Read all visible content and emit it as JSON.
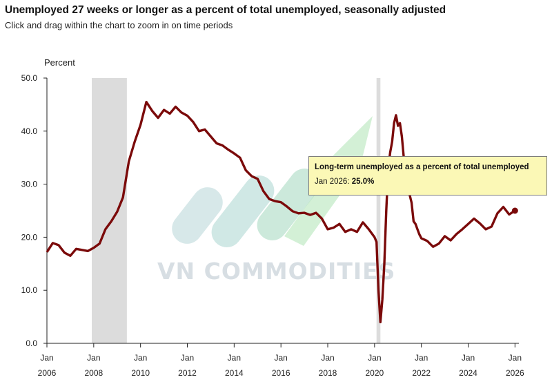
{
  "header": {
    "title": "Unemployed 27 weeks or longer as a percent of total unemployed, seasonally adjusted",
    "subtitle": "Click and drag within the chart to zoom in on time periods"
  },
  "watermark": {
    "text": "VN COMMODITIES"
  },
  "tooltip": {
    "title": "Long-term unemployed as a percent of total unemployed",
    "label": "Jan 2026:",
    "value": "25.0%"
  },
  "chart_data": {
    "type": "line",
    "ylabel": "Percent",
    "ylim": [
      0,
      50
    ],
    "xlim": [
      "2006-01",
      "2026-03"
    ],
    "yticks": [
      "0.0",
      "10.0",
      "20.0",
      "30.0",
      "40.0",
      "50.0"
    ],
    "xticks": [
      {
        "month": "Jan",
        "year": "2006"
      },
      {
        "month": "Jan",
        "year": "2008"
      },
      {
        "month": "Jan",
        "year": "2010"
      },
      {
        "month": "Jan",
        "year": "2012"
      },
      {
        "month": "Jan",
        "year": "2014"
      },
      {
        "month": "Jan",
        "year": "2016"
      },
      {
        "month": "Jan",
        "year": "2018"
      },
      {
        "month": "Jan",
        "year": "2020"
      },
      {
        "month": "Jan",
        "year": "2022"
      },
      {
        "month": "Jan",
        "year": "2024"
      },
      {
        "month": "Jan",
        "year": "2026"
      }
    ],
    "recessions": [
      {
        "start": "2007-12",
        "end": "2009-06"
      },
      {
        "start": "2020-02",
        "end": "2020-04"
      }
    ],
    "series_color": "#7b0a0a",
    "highlight": {
      "x": "2026-01",
      "y": 25.0
    },
    "series": [
      {
        "x": [
          "2006-01",
          "2006-04",
          "2006-07",
          "2006-10",
          "2007-01",
          "2007-04",
          "2007-07",
          "2007-10",
          "2008-01",
          "2008-04",
          "2008-07",
          "2008-10",
          "2009-01",
          "2009-04",
          "2009-07",
          "2009-10",
          "2010-01",
          "2010-04",
          "2010-07",
          "2010-10",
          "2011-01",
          "2011-04",
          "2011-07",
          "2011-10",
          "2012-01",
          "2012-04",
          "2012-07",
          "2012-10",
          "2013-01",
          "2013-04",
          "2013-07",
          "2013-10",
          "2014-01",
          "2014-04",
          "2014-07",
          "2014-10",
          "2015-01",
          "2015-04",
          "2015-07",
          "2015-10",
          "2016-01",
          "2016-04",
          "2016-07",
          "2016-10",
          "2017-01",
          "2017-04",
          "2017-07",
          "2017-10",
          "2018-01",
          "2018-04",
          "2018-07",
          "2018-10",
          "2019-01",
          "2019-04",
          "2019-07",
          "2019-10",
          "2020-01",
          "2020-02",
          "2020-03",
          "2020-04",
          "2020-05",
          "2020-06",
          "2020-07",
          "2020-08",
          "2020-09",
          "2020-10",
          "2020-11",
          "2020-12",
          "2021-01",
          "2021-02",
          "2021-03",
          "2021-04",
          "2021-05",
          "2021-06",
          "2021-07",
          "2021-08",
          "2021-09",
          "2021-10",
          "2021-11",
          "2021-12",
          "2022-01",
          "2022-04",
          "2022-07",
          "2022-10",
          "2023-01",
          "2023-04",
          "2023-07",
          "2023-10",
          "2024-01",
          "2024-04",
          "2024-07",
          "2024-10",
          "2025-01",
          "2025-04",
          "2025-07",
          "2025-10",
          "2026-01"
        ],
        "y": [
          17.2,
          18.9,
          18.5,
          17.1,
          16.5,
          17.8,
          17.6,
          17.4,
          18.0,
          18.8,
          21.5,
          23.0,
          24.8,
          27.5,
          34.3,
          38.0,
          41.2,
          45.5,
          43.8,
          42.5,
          44.0,
          43.3,
          44.6,
          43.5,
          42.9,
          41.7,
          40.0,
          40.3,
          39.0,
          37.7,
          37.3,
          36.5,
          35.8,
          35.0,
          32.6,
          31.5,
          31.0,
          28.7,
          27.2,
          26.8,
          26.6,
          25.8,
          24.9,
          24.5,
          24.6,
          24.2,
          24.6,
          23.5,
          21.5,
          21.8,
          22.5,
          21.0,
          21.5,
          21.0,
          22.8,
          21.5,
          20.0,
          19.1,
          10.0,
          4.0,
          8.2,
          15.0,
          25.0,
          33.0,
          36.0,
          38.0,
          41.5,
          43.0,
          41.0,
          41.5,
          39.0,
          35.0,
          33.0,
          31.0,
          28.0,
          26.5,
          23.0,
          22.5,
          21.5,
          20.5,
          19.8,
          19.3,
          18.2,
          18.8,
          20.2,
          19.4,
          20.6,
          21.5,
          22.5,
          23.5,
          22.6,
          21.5,
          22.0,
          24.5,
          25.7,
          24.3,
          25.0
        ]
      }
    ]
  }
}
